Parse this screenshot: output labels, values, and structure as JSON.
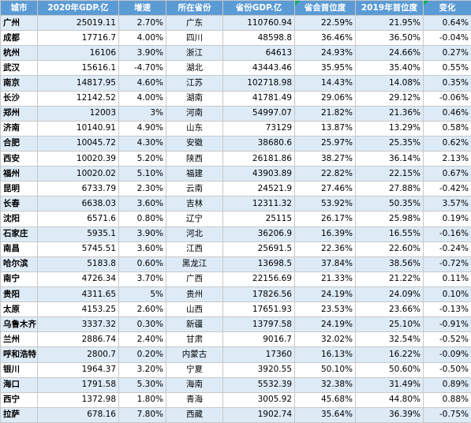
{
  "headers": [
    "城市",
    "2020年GDP.亿",
    "增速",
    "所在省份",
    "省份GDP.亿",
    "省会首位度",
    "2019年首位度",
    "变化"
  ],
  "rows": [
    [
      "广州",
      "25019.11",
      "2.70%",
      "广东",
      "110760.94",
      "22.59%",
      "21.95%",
      "0.64%"
    ],
    [
      "成都",
      "17716.7",
      "4.00%",
      "四川",
      "48598.8",
      "36.46%",
      "36.50%",
      "-0.04%"
    ],
    [
      "杭州",
      "16106",
      "3.90%",
      "浙江",
      "64613",
      "24.93%",
      "24.66%",
      "0.27%"
    ],
    [
      "武汉",
      "15616.1",
      "-4.70%",
      "湖北",
      "43443.46",
      "35.95%",
      "35.40%",
      "0.55%"
    ],
    [
      "南京",
      "14817.95",
      "4.60%",
      "江苏",
      "102718.98",
      "14.43%",
      "14.08%",
      "0.35%"
    ],
    [
      "长沙",
      "12142.52",
      "4.00%",
      "湖南",
      "41781.49",
      "29.06%",
      "29.12%",
      "-0.06%"
    ],
    [
      "郑州",
      "12003",
      "3%",
      "河南",
      "54997.07",
      "21.82%",
      "21.36%",
      "0.46%"
    ],
    [
      "济南",
      "10140.91",
      "4.90%",
      "山东",
      "73129",
      "13.87%",
      "13.29%",
      "0.58%"
    ],
    [
      "合肥",
      "10045.72",
      "4.30%",
      "安徽",
      "38680.6",
      "25.97%",
      "25.35%",
      "0.62%"
    ],
    [
      "西安",
      "10020.39",
      "5.20%",
      "陕西",
      "26181.86",
      "38.27%",
      "36.14%",
      "2.13%"
    ],
    [
      "福州",
      "10020.02",
      "5.10%",
      "福建",
      "43903.89",
      "22.82%",
      "22.15%",
      "0.67%"
    ],
    [
      "昆明",
      "6733.79",
      "2.30%",
      "云南",
      "24521.9",
      "27.46%",
      "27.88%",
      "-0.42%"
    ],
    [
      "长春",
      "6638.03",
      "3.60%",
      "吉林",
      "12311.32",
      "53.92%",
      "50.35%",
      "3.57%"
    ],
    [
      "沈阳",
      "6571.6",
      "0.80%",
      "辽宁",
      "25115",
      "26.17%",
      "25.98%",
      "0.19%"
    ],
    [
      "石家庄",
      "5935.1",
      "3.90%",
      "河北",
      "36206.9",
      "16.39%",
      "16.55%",
      "-0.16%"
    ],
    [
      "南昌",
      "5745.51",
      "3.60%",
      "江西",
      "25691.5",
      "22.36%",
      "22.60%",
      "-0.24%"
    ],
    [
      "哈尔滨",
      "5183.8",
      "0.60%",
      "黑龙江",
      "13698.5",
      "37.84%",
      "38.56%",
      "-0.72%"
    ],
    [
      "南宁",
      "4726.34",
      "3.70%",
      "广西",
      "22156.69",
      "21.33%",
      "21.22%",
      "0.11%"
    ],
    [
      "贵阳",
      "4311.65",
      "5%",
      "贵州",
      "17826.56",
      "24.19%",
      "24.09%",
      "0.10%"
    ],
    [
      "太原",
      "4153.25",
      "2.60%",
      "山西",
      "17651.93",
      "23.53%",
      "23.66%",
      "-0.13%"
    ],
    [
      "乌鲁木齐",
      "3337.32",
      "0.30%",
      "新疆",
      "13797.58",
      "24.19%",
      "25.10%",
      "-0.91%"
    ],
    [
      "兰州",
      "2886.74",
      "2.40%",
      "甘肃",
      "9016.7",
      "32.02%",
      "32.54%",
      "-0.52%"
    ],
    [
      "呼和浩特",
      "2800.7",
      "0.20%",
      "内蒙古",
      "17360",
      "16.13%",
      "16.22%",
      "-0.09%"
    ],
    [
      "银川",
      "1964.37",
      "3.20%",
      "宁夏",
      "3920.55",
      "50.10%",
      "50.60%",
      "-0.50%"
    ],
    [
      "海口",
      "1791.58",
      "5.30%",
      "海南",
      "5532.39",
      "32.38%",
      "31.49%",
      "0.89%"
    ],
    [
      "西宁",
      "1372.98",
      "1.80%",
      "青海",
      "3005.92",
      "45.68%",
      "44.80%",
      "0.88%"
    ],
    [
      "拉萨",
      "678.16",
      "7.80%",
      "西藏",
      "1902.74",
      "35.64%",
      "36.39%",
      "-0.75%"
    ]
  ],
  "colors": {
    "header_bg": "#5b9bd5",
    "header_text": "#ffffff",
    "band_row": "#ddebf7",
    "plain_row": "#ffffff",
    "sort_marker": "#00b050"
  }
}
